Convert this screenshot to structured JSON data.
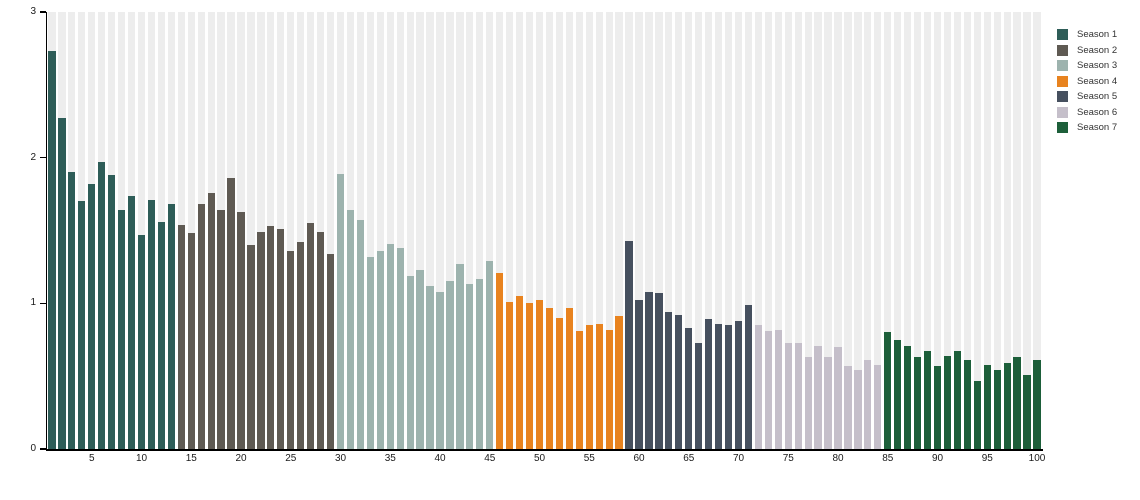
{
  "chart_data": {
    "type": "bar",
    "title": "",
    "xlabel": "",
    "ylabel": "",
    "ylim": [
      0,
      3
    ],
    "yticks": [
      0,
      1,
      2,
      3
    ],
    "xticks": [
      5,
      10,
      15,
      20,
      25,
      30,
      35,
      40,
      45,
      50,
      55,
      60,
      65,
      70,
      75,
      80,
      85,
      90,
      95,
      100
    ],
    "x_range": [
      1,
      100
    ],
    "grid": "none",
    "legend_position": "top-right",
    "background_stripe_color": "#ededed",
    "axis_color": "#000000",
    "tick_label_color": "#1a1a1a",
    "series": [
      {
        "name": "Season 1",
        "color": "#2e5d58",
        "start_x": 1,
        "values": [
          2.73,
          2.27,
          1.9,
          1.7,
          1.82,
          1.97,
          1.88,
          1.64,
          1.74,
          1.47,
          1.71,
          1.56,
          1.68
        ]
      },
      {
        "name": "Season 2",
        "color": "#5f5a53",
        "start_x": 14,
        "values": [
          1.54,
          1.48,
          1.68,
          1.76,
          1.64,
          1.86,
          1.63,
          1.4,
          1.49,
          1.53,
          1.51,
          1.36,
          1.42,
          1.55,
          1.49,
          1.34
        ]
      },
      {
        "name": "Season 3",
        "color": "#9db3ae",
        "start_x": 30,
        "values": [
          1.89,
          1.64,
          1.57,
          1.32,
          1.36,
          1.41,
          1.38,
          1.19,
          1.23,
          1.12,
          1.08,
          1.15,
          1.27,
          1.13,
          1.17,
          1.29
        ]
      },
      {
        "name": "Season 4",
        "color": "#e8831f",
        "start_x": 46,
        "values": [
          1.21,
          1.01,
          1.05,
          1.0,
          1.02,
          0.97,
          0.9,
          0.97,
          0.81,
          0.85,
          0.86,
          0.82,
          0.91
        ]
      },
      {
        "name": "Season 5",
        "color": "#46505f",
        "start_x": 59,
        "values": [
          1.43,
          1.02,
          1.08,
          1.07,
          0.94,
          0.92,
          0.83,
          0.73,
          0.89,
          0.86,
          0.85,
          0.88,
          0.99
        ]
      },
      {
        "name": "Season 6",
        "color": "#c5bfca",
        "start_x": 72,
        "values": [
          0.85,
          0.81,
          0.82,
          0.73,
          0.73,
          0.63,
          0.71,
          0.63,
          0.7,
          0.57,
          0.54,
          0.61,
          0.58
        ]
      },
      {
        "name": "Season 7",
        "color": "#1d5f3a",
        "start_x": 85,
        "values": [
          0.8,
          0.75,
          0.71,
          0.63,
          0.67,
          0.57,
          0.64,
          0.67,
          0.61,
          0.47,
          0.58,
          0.54,
          0.59,
          0.63,
          0.51,
          0.61
        ]
      }
    ]
  }
}
